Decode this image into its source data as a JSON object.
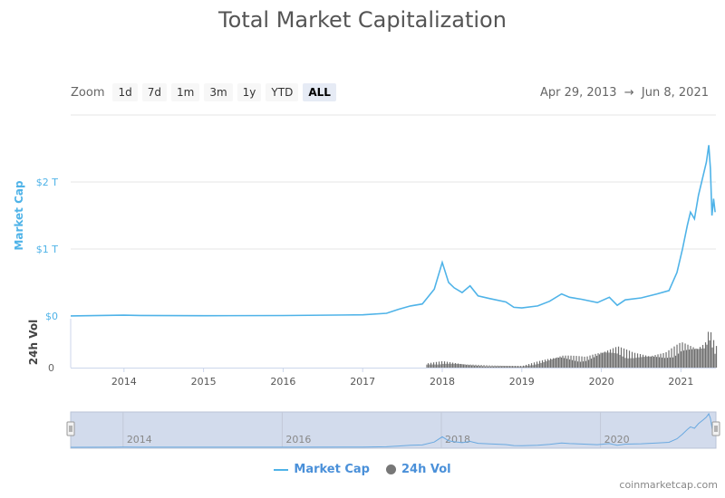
{
  "title": "Total Market Capitalization",
  "zoom": {
    "label": "Zoom",
    "buttons": [
      "1d",
      "7d",
      "1m",
      "3m",
      "1y",
      "YTD",
      "ALL"
    ],
    "selected": "ALL"
  },
  "range": {
    "from": "Apr 29, 2013",
    "arrow": "→",
    "to": "Jun 8, 2021"
  },
  "legend": {
    "market_cap": "Market Cap",
    "volume": "24h Vol"
  },
  "watermark": "coinmarketcap.com",
  "colors": {
    "market_cap": "#4fb3e8",
    "volume": "#6e6e6e",
    "navigator": "#d2dbec"
  },
  "chart_data": {
    "type": "line",
    "title": "Total Market Capitalization",
    "x_range": [
      "2013-04-29",
      "2021-06-08"
    ],
    "x_ticks": [
      "2014",
      "2015",
      "2016",
      "2017",
      "2018",
      "2019",
      "2020",
      "2021"
    ],
    "navigator_ticks": [
      "2014",
      "2016",
      "2018",
      "2020"
    ],
    "y_axis": {
      "label": "Market Cap",
      "ticks": [
        "$0",
        "$1 T",
        "$2 T"
      ],
      "unit": "trillion USD",
      "range": [
        0,
        2.6
      ]
    },
    "y2_axis": {
      "label": "24h Vol",
      "ticks": [
        "0"
      ]
    },
    "series": [
      {
        "name": "Market Cap",
        "x": [
          2013.33,
          2014.0,
          2014.2,
          2015.0,
          2016.0,
          2017.0,
          2017.3,
          2017.45,
          2017.6,
          2017.75,
          2017.9,
          2018.0,
          2018.08,
          2018.15,
          2018.25,
          2018.35,
          2018.45,
          2018.6,
          2018.8,
          2018.9,
          2019.0,
          2019.2,
          2019.35,
          2019.5,
          2019.6,
          2019.75,
          2019.95,
          2020.1,
          2020.2,
          2020.3,
          2020.5,
          2020.7,
          2020.85,
          2020.95,
          2021.02,
          2021.08,
          2021.12,
          2021.17,
          2021.22,
          2021.28,
          2021.32,
          2021.35,
          2021.37,
          2021.39,
          2021.41,
          2021.43
        ],
        "y": [
          0.0015,
          0.012,
          0.008,
          0.004,
          0.007,
          0.018,
          0.04,
          0.1,
          0.15,
          0.18,
          0.4,
          0.8,
          0.5,
          0.42,
          0.35,
          0.45,
          0.3,
          0.26,
          0.21,
          0.13,
          0.12,
          0.15,
          0.22,
          0.33,
          0.28,
          0.25,
          0.2,
          0.28,
          0.16,
          0.24,
          0.27,
          0.33,
          0.38,
          0.65,
          1.0,
          1.35,
          1.55,
          1.45,
          1.8,
          2.1,
          2.3,
          2.55,
          2.2,
          1.5,
          1.75,
          1.55
        ]
      },
      {
        "name": "24h Vol",
        "x": [
          2017.8,
          2018.0,
          2018.3,
          2018.6,
          2019.0,
          2019.3,
          2019.5,
          2019.8,
          2020.0,
          2020.2,
          2020.4,
          2020.6,
          2020.8,
          2021.0,
          2021.1,
          2021.2,
          2021.3,
          2021.35,
          2021.43
        ],
        "y": [
          0.1,
          0.15,
          0.08,
          0.05,
          0.04,
          0.2,
          0.3,
          0.25,
          0.4,
          0.5,
          0.35,
          0.3,
          0.35,
          0.6,
          0.55,
          0.5,
          0.6,
          0.95,
          0.5
        ]
      }
    ]
  }
}
